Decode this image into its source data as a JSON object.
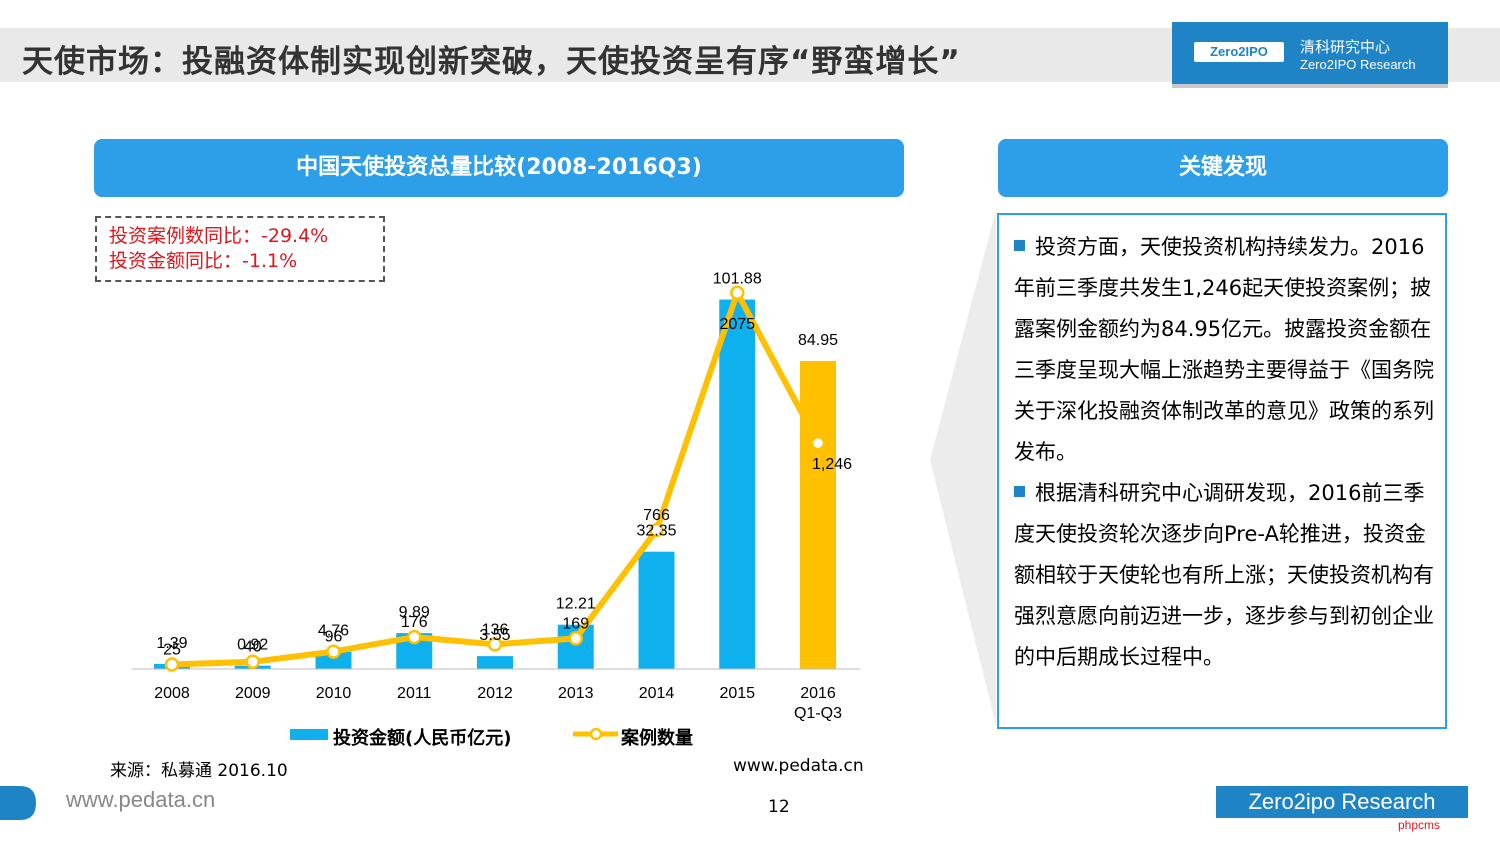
{
  "header": {
    "title": "天使市场：投融资体制实现创新突破，天使投资呈有序“野蛮增长”",
    "logo_badge": "Zero2IPO",
    "logo_cn": "清科研究中心",
    "logo_en": "Zero2IPO Research"
  },
  "chart_panel": {
    "heading": "中国天使投资总量比较(2008-2016Q3)",
    "yoy_cases": "投资案例数同比：-29.4%",
    "yoy_amount": "投资金额同比：-1.1%",
    "source": "来源：私募通 2016.10",
    "source_url": "www.pedata.cn"
  },
  "chart_data": {
    "type": "bar",
    "title": "中国天使投资总量比较(2008-2016Q3)",
    "categories": [
      "2008",
      "2009",
      "2010",
      "2011",
      "2012",
      "2013",
      "2014",
      "2015",
      "2016 Q1-Q3"
    ],
    "series": [
      {
        "name": "投资金额(人民币亿元)",
        "type": "bar",
        "axis": "left",
        "values": [
          1.39,
          0.92,
          4.76,
          9.89,
          3.55,
          12.21,
          32.35,
          101.88,
          84.95
        ],
        "labels": [
          "1.39",
          "0.92",
          "4.76",
          "9.89",
          "3.55",
          "12.21",
          "32.35",
          "101.88",
          "84.95"
        ]
      },
      {
        "name": "案例数量",
        "type": "line",
        "axis": "right",
        "values": [
          25,
          40,
          96,
          176,
          136,
          169,
          766,
          2075,
          1246
        ],
        "labels": [
          "25",
          "40",
          "96",
          "176",
          "136",
          "169",
          "766",
          "2075",
          "1,246"
        ]
      }
    ],
    "colors": {
      "bar": "#0fb0ee",
      "bar_highlight": "#ffc000",
      "line": "#ffc000"
    },
    "legend_position": "bottom",
    "grid": false,
    "ylim_left": [
      0,
      115
    ],
    "ylim_right": [
      0,
      2300
    ]
  },
  "findings": {
    "heading": "关键发现",
    "items": [
      "投资方面，天使投资机构持续发力。2016年前三季度共发生1,246起天使投资案例；披露案例金额约为84.95亿元。披露投资金额在三季度呈现大幅上涨趋势主要得益于《国务院关于深化投融资体制改革的意见》政策的系列发布。",
      "根据清科研究中心调研发现，2016前三季度天使投资轮次逐步向Pre-A轮推进，投资金额相较于天使轮也有所上涨；天使投资机构有强烈意愿向前迈进一步，逐步参与到初创企业的中后期成长过程中。"
    ]
  },
  "footer": {
    "url": "www.pedata.cn",
    "page": "12",
    "brand": "Zero2ipo Research",
    "watermark": "phpcms"
  }
}
